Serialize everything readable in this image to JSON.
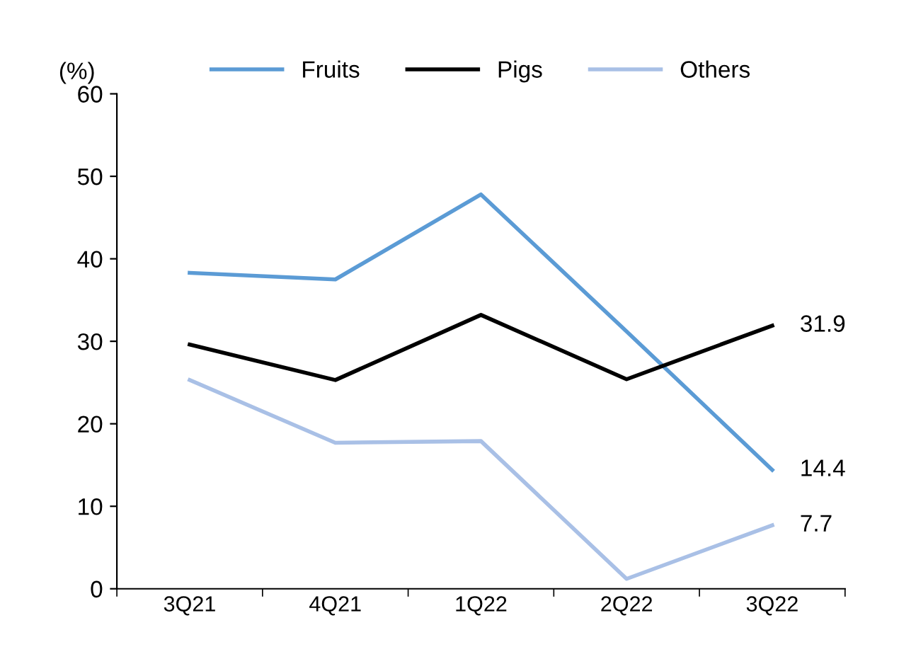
{
  "chart_data": {
    "type": "line",
    "ylabel": "(%)",
    "categories": [
      "3Q21",
      "4Q21",
      "1Q22",
      "2Q22",
      "3Q22"
    ],
    "series": [
      {
        "name": "Fruits",
        "color": "#5b9bd5",
        "values": [
          38.3,
          37.5,
          47.8,
          31.2,
          14.4
        ],
        "value_labels": [
          null,
          null,
          null,
          null,
          "14.4"
        ]
      },
      {
        "name": "Pigs",
        "color": "#000000",
        "values": [
          29.6,
          25.3,
          33.2,
          25.4,
          31.9
        ],
        "value_labels": [
          null,
          null,
          null,
          null,
          "31.9"
        ]
      },
      {
        "name": "Others",
        "color": "#a9c0e6",
        "values": [
          25.3,
          17.7,
          17.9,
          1.2,
          7.7
        ],
        "value_labels": [
          null,
          null,
          null,
          null,
          "7.7"
        ]
      }
    ],
    "ylim": [
      0,
      60
    ],
    "yticks": [
      0,
      10,
      20,
      30,
      40,
      50,
      60
    ],
    "grid": false,
    "legend": "top",
    "marker": "none",
    "line_style": "solid"
  }
}
